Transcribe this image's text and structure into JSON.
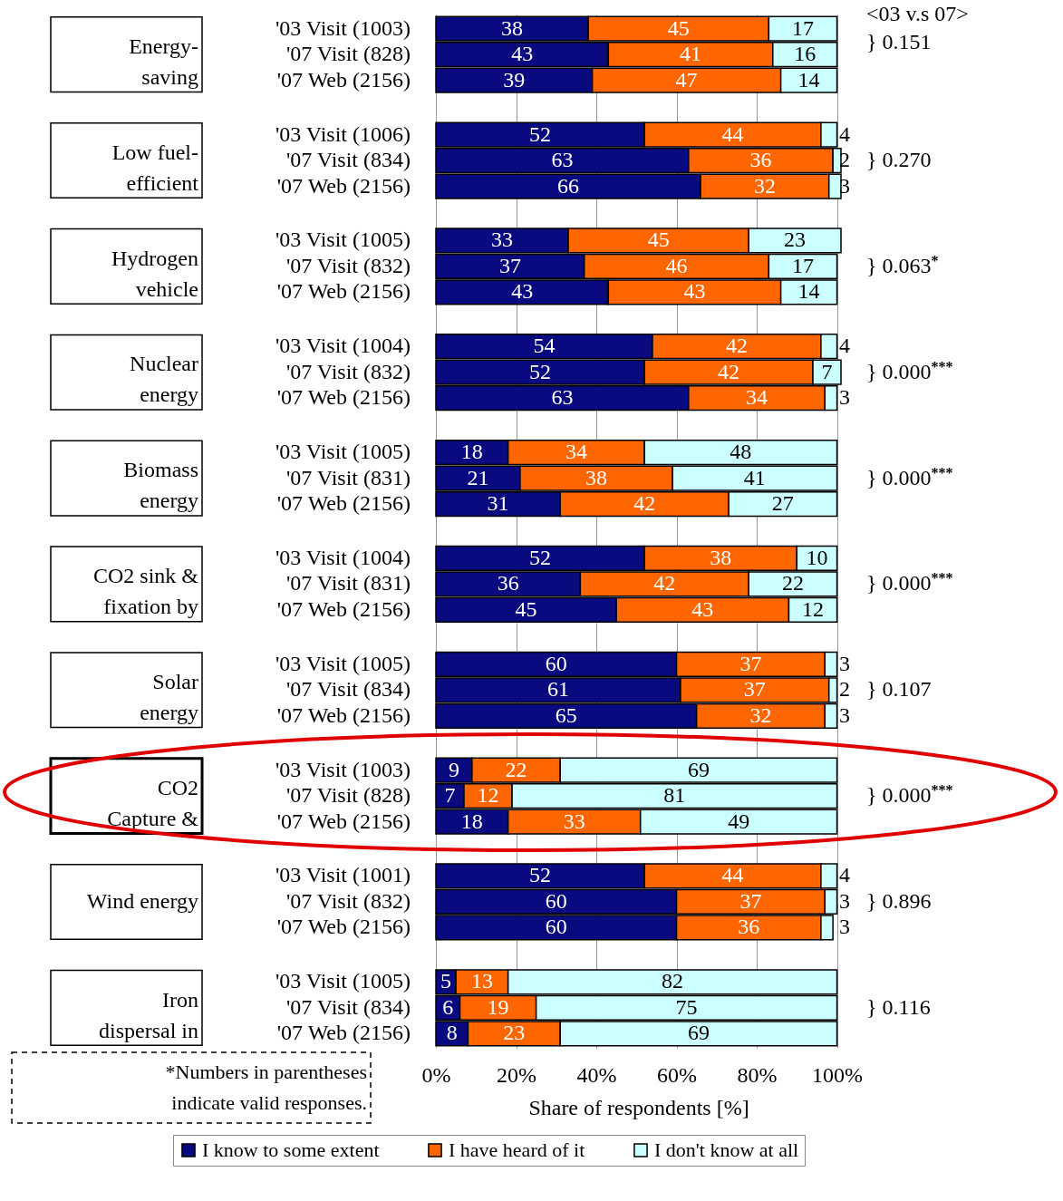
{
  "chart_data": {
    "type": "bar",
    "orientation": "horizontal",
    "stacked": true,
    "categories": [
      "'03 Visit (1003)",
      "'07 Visit (828)",
      "'07 Web (2156)",
      "'03 Visit (1006)",
      "'07 Visit (834)",
      "'07 Web (2156)",
      "'03 Visit (1005)",
      "'07 Visit (832)",
      "'07 Web (2156)",
      "'03 Visit (1004)",
      "'07 Visit (832)",
      "'07 Web (2156)",
      "'03 Visit (1005)",
      "'07 Visit (831)",
      "'07 Web (2156)",
      "'03 Visit (1004)",
      "'07 Visit (831)",
      "'07 Web (2156)",
      "'03 Visit (1005)",
      "'07 Visit (834)",
      "'07 Web (2156)",
      "'03 Visit (1003)",
      "'07 Visit (828)",
      "'07 Web (2156)",
      "'03 Visit (1001)",
      "'07 Visit (832)",
      "'07 Web (2156)",
      "'03 Visit (1005)",
      "'07 Visit (834)",
      "'07 Web (2156)"
    ],
    "series": [
      {
        "name": "I know to some extent",
        "color": "#0a0a80",
        "values": [
          38,
          43,
          39,
          52,
          63,
          66,
          33,
          37,
          43,
          54,
          52,
          63,
          18,
          21,
          31,
          52,
          36,
          45,
          60,
          61,
          65,
          9,
          7,
          18,
          52,
          60,
          60,
          5,
          6,
          8
        ]
      },
      {
        "name": "I have heard of it",
        "color": "#ff6600",
        "values": [
          45,
          41,
          47,
          44,
          36,
          32,
          45,
          46,
          43,
          42,
          42,
          34,
          34,
          38,
          42,
          38,
          42,
          43,
          37,
          37,
          32,
          22,
          12,
          33,
          44,
          37,
          36,
          13,
          19,
          23
        ]
      },
      {
        "name": "I don't know at all",
        "color": "#ccffff",
        "values": [
          17,
          16,
          14,
          4,
          2,
          3,
          23,
          17,
          14,
          4,
          7,
          3,
          48,
          41,
          27,
          10,
          22,
          12,
          3,
          2,
          3,
          69,
          81,
          49,
          4,
          3,
          3,
          82,
          75,
          69
        ]
      }
    ],
    "xlim": [
      0,
      101
    ],
    "xticks": [
      {
        "value": 0,
        "label": "0%"
      },
      {
        "value": 20,
        "label": "20%"
      },
      {
        "value": 40,
        "label": "40%"
      },
      {
        "value": 60,
        "label": "60%"
      },
      {
        "value": 80,
        "label": "80%"
      },
      {
        "value": 100,
        "label": "100%"
      }
    ],
    "xlabel": "Share of respondents [%]",
    "grid": "x",
    "legend": "bottom",
    "data_labels": true,
    "annotations": [
      "Energy-saving",
      "Low fuel-efficient",
      "Hydrogen vehicle",
      "Nuclear energy",
      "Biomass energy",
      "CO2 sink & fixation by",
      "Solar energy",
      "CO2 Capture &",
      "Wind energy",
      "Iron dispersal in",
      "<03 v.s 07>",
      "} 0.151",
      "} 0.270",
      "} 0.063$^{*}$",
      "} 0.000$^{***}$",
      "} 0.000$^{***}$",
      "} 0.000$^{***}$",
      "} 0.107",
      "} 0.000$^{***}$",
      "} 0.896",
      "} 0.116",
      "*Numbers in parentheses indicate valid responses."
    ]
  }
}
